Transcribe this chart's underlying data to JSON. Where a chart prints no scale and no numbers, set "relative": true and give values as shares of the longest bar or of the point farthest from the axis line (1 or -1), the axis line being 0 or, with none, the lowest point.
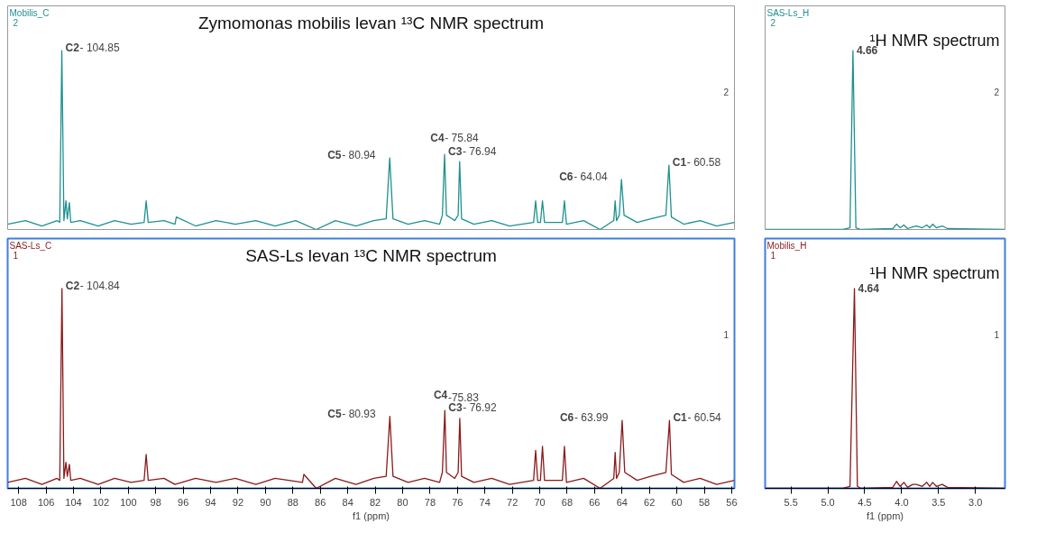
{
  "chart_data": [
    {
      "type": "line",
      "title": "Zymomonas mobilis levan ¹³C NMR spectrum",
      "relative": true,
      "tick_labels": false,
      "grid": false,
      "marker": "none",
      "line_style": "solid",
      "xlim": [
        108.8,
        55.8
      ],
      "series": [
        {
          "color": "#1f9090",
          "x": [
            108.8,
            107.5,
            106.3,
            105.2,
            105.0,
            104.85,
            104.7,
            104.55,
            104.45,
            104.3,
            104.2,
            103.5,
            102.2,
            101.0,
            99.8,
            98.85,
            98.7,
            98.55,
            97.4,
            96.6,
            96.5,
            95.1,
            93.6,
            92.2,
            90.7,
            89.3,
            87.8,
            86.3,
            84.9,
            83.4,
            82.1,
            81.2,
            80.94,
            80.7,
            79.6,
            78.4,
            77.3,
            77.1,
            76.94,
            76.8,
            76.2,
            75.95,
            75.84,
            75.7,
            74.8,
            73.5,
            72.2,
            70.45,
            70.3,
            70.15,
            69.95,
            69.8,
            69.65,
            68.35,
            68.2,
            68.05,
            66.8,
            65.6,
            64.6,
            64.5,
            64.4,
            64.2,
            64.04,
            63.85,
            62.9,
            61.9,
            60.8,
            60.58,
            60.4,
            59.5,
            58.3,
            57.1,
            55.8
          ],
          "values": [
            0.03,
            0.05,
            0.02,
            0.05,
            0.04,
            1.0,
            0.05,
            0.16,
            0.06,
            0.15,
            0.04,
            0.05,
            0.02,
            0.05,
            0.03,
            0.04,
            0.16,
            0.04,
            0.05,
            0.03,
            0.07,
            0.02,
            0.05,
            0.03,
            0.05,
            0.02,
            0.05,
            0.0,
            0.05,
            0.02,
            0.05,
            0.06,
            0.4,
            0.06,
            0.03,
            0.05,
            0.03,
            0.08,
            0.42,
            0.08,
            0.05,
            0.08,
            0.38,
            0.06,
            0.03,
            0.05,
            0.02,
            0.04,
            0.16,
            0.04,
            0.04,
            0.16,
            0.04,
            0.04,
            0.16,
            0.03,
            0.05,
            0.0,
            0.05,
            0.16,
            0.05,
            0.08,
            0.28,
            0.08,
            0.04,
            0.06,
            0.08,
            0.36,
            0.07,
            0.03,
            0.05,
            0.02,
            0.04
          ]
        }
      ],
      "annotations": [
        "Mobilis_C",
        "2",
        "2",
        {
          "text": "C2- 104.85",
          "x": 104.85,
          "y": 1.0
        },
        {
          "text": "C5- 80.94",
          "x": 80.94,
          "y": 0.4
        },
        {
          "text": "C3- 76.94",
          "x": 76.94,
          "y": 0.42
        },
        {
          "text": "C4- 75.84",
          "x": 75.84,
          "y": 0.38
        },
        {
          "text": "C6- 64.04",
          "x": 64.04,
          "y": 0.28
        },
        {
          "text": "C1- 60.58",
          "x": 60.58,
          "y": 0.36
        }
      ]
    },
    {
      "type": "line",
      "title": "¹H NMR spectrum",
      "relative": true,
      "tick_labels": false,
      "grid": false,
      "marker": "none",
      "line_style": "solid",
      "xlim": [
        5.85,
        2.6
      ],
      "series": [
        {
          "color": "#1f9090",
          "x": [
            5.85,
            4.8,
            4.7,
            4.66,
            4.62,
            4.55,
            4.12,
            4.07,
            4.02,
            3.97,
            3.92,
            3.85,
            3.8,
            3.72,
            3.66,
            3.62,
            3.58,
            3.53,
            3.45,
            3.38,
            2.6
          ],
          "values": [
            0,
            0,
            0.01,
            1.0,
            0.01,
            0,
            0.005,
            0.03,
            0.01,
            0.025,
            0.005,
            0.015,
            0.02,
            0.01,
            0.025,
            0.01,
            0.03,
            0.01,
            0.02,
            0.005,
            0
          ]
        }
      ],
      "annotations": [
        "SAS-Ls_H",
        "2",
        "2",
        {
          "text": "4.66",
          "x": 4.66,
          "y": 1.0
        }
      ]
    },
    {
      "type": "line",
      "title": "SAS-Ls levan ¹³C NMR spectrum",
      "relative": true,
      "tick_labels": "x",
      "grid": false,
      "marker": "none",
      "line_style": "solid",
      "xlabel": "f1 (ppm)",
      "xlim": [
        108.8,
        55.8
      ],
      "xticks": [
        108,
        106,
        104,
        102,
        100,
        98,
        96,
        94,
        92,
        90,
        88,
        86,
        84,
        82,
        80,
        78,
        76,
        74,
        72,
        70,
        68,
        66,
        64,
        62,
        60,
        58,
        56
      ],
      "series": [
        {
          "color": "#8b1a1a",
          "x": [
            108.8,
            107.5,
            106.3,
            105.2,
            105.0,
            104.84,
            104.7,
            104.55,
            104.45,
            104.3,
            104.2,
            103.5,
            102.2,
            101.0,
            99.8,
            98.85,
            98.7,
            98.55,
            97.4,
            96.6,
            95.1,
            93.6,
            92.2,
            90.7,
            89.3,
            87.3,
            87.2,
            86.3,
            84.9,
            83.4,
            82.1,
            81.2,
            80.93,
            80.7,
            79.6,
            78.4,
            77.3,
            77.1,
            76.92,
            76.8,
            76.2,
            75.95,
            75.83,
            75.7,
            74.8,
            73.5,
            72.2,
            70.45,
            70.3,
            70.15,
            69.95,
            69.8,
            69.65,
            68.35,
            68.2,
            68.05,
            66.8,
            65.6,
            64.6,
            64.5,
            64.4,
            64.2,
            63.99,
            63.8,
            62.9,
            61.9,
            60.8,
            60.54,
            60.4,
            59.5,
            58.3,
            57.1,
            55.8
          ],
          "values": [
            0.03,
            0.05,
            0.02,
            0.05,
            0.04,
            1.0,
            0.05,
            0.13,
            0.06,
            0.12,
            0.04,
            0.05,
            0.02,
            0.05,
            0.03,
            0.04,
            0.17,
            0.04,
            0.05,
            0.02,
            0.05,
            0.03,
            0.05,
            0.02,
            0.05,
            0.03,
            0.07,
            0.0,
            0.05,
            0.02,
            0.05,
            0.06,
            0.36,
            0.06,
            0.03,
            0.05,
            0.03,
            0.08,
            0.39,
            0.08,
            0.05,
            0.08,
            0.35,
            0.06,
            0.03,
            0.05,
            0.02,
            0.04,
            0.19,
            0.04,
            0.04,
            0.21,
            0.04,
            0.04,
            0.21,
            0.03,
            0.05,
            0.0,
            0.05,
            0.18,
            0.05,
            0.08,
            0.34,
            0.08,
            0.04,
            0.06,
            0.08,
            0.34,
            0.07,
            0.03,
            0.05,
            0.02,
            0.04
          ]
        }
      ],
      "annotations": [
        "SAS-Ls_C",
        "1",
        "1",
        {
          "text": "C2- 104.84",
          "x": 104.84,
          "y": 1.0
        },
        {
          "text": "C5- 80.93",
          "x": 80.93,
          "y": 0.36
        },
        {
          "text": "C3- 76.92",
          "x": 76.92,
          "y": 0.39
        },
        {
          "text": "C4-75.83",
          "x": 75.83,
          "y": 0.35
        },
        {
          "text": "C6- 63.99",
          "x": 63.99,
          "y": 0.34
        },
        {
          "text": "C1- 60.54",
          "x": 60.54,
          "y": 0.34
        }
      ]
    },
    {
      "type": "line",
      "title": "¹H NMR spectrum",
      "relative": true,
      "tick_labels": "x",
      "grid": false,
      "marker": "none",
      "line_style": "solid",
      "xlabel": "f1 (ppm)",
      "xlim": [
        5.85,
        2.6
      ],
      "xticks": [
        5.5,
        {
          "value": 5,
          "label": "5.0"
        },
        4.5,
        {
          "value": 4,
          "label": "4.0"
        },
        3.5,
        {
          "value": 3,
          "label": "3.0"
        }
      ],
      "series": [
        {
          "color": "#8b1a1a",
          "x": [
            5.85,
            4.8,
            4.7,
            4.64,
            4.6,
            4.55,
            4.12,
            4.07,
            4.02,
            3.97,
            3.92,
            3.85,
            3.8,
            3.72,
            3.66,
            3.62,
            3.58,
            3.53,
            3.45,
            3.38,
            2.6
          ],
          "values": [
            0,
            0,
            0.01,
            1.0,
            0.01,
            0,
            0.005,
            0.035,
            0.01,
            0.03,
            0.005,
            0.02,
            0.02,
            0.01,
            0.03,
            0.01,
            0.03,
            0.01,
            0.02,
            0.005,
            0
          ]
        }
      ],
      "annotations": [
        "Mobilis_H",
        "1",
        "1",
        {
          "text": "4.64",
          "x": 4.64,
          "y": 1.0
        }
      ]
    }
  ]
}
